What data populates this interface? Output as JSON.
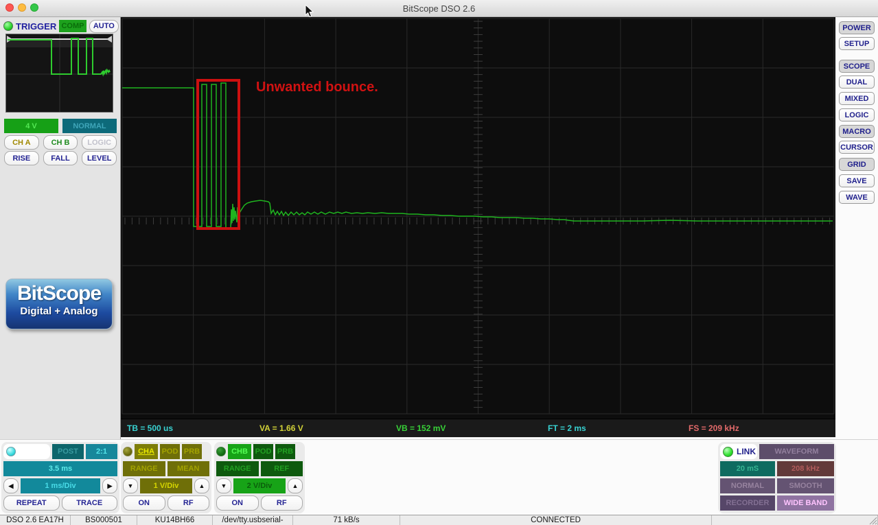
{
  "window": {
    "title": "BitScope DSO 2.6"
  },
  "trigger": {
    "label": "TRIGGER",
    "comp_label": "COMP",
    "auto_label": "AUTO",
    "level_value": "4 V",
    "mode_value": "NORMAL",
    "source_a": "CH A",
    "source_b": "CH B",
    "source_logic": "LOGIC",
    "edge_rise": "RISE",
    "edge_fall": "FALL",
    "edge_level": "LEVEL"
  },
  "logo": {
    "title": "BitScope",
    "subtitle": "Digital + Analog"
  },
  "scope": {
    "annotation": "Unwanted bounce.",
    "annotation_color": "#d11212",
    "trace_color": "#1fb51f",
    "measurements": {
      "tb": {
        "label": "TB = 500 us",
        "color": "#38d2d2"
      },
      "va": {
        "label": "VA = 1.66 V",
        "color": "#d2d238"
      },
      "vb": {
        "label": "VB = 152 mV",
        "color": "#38d238"
      },
      "ft": {
        "label": "FT = 2 ms",
        "color": "#38d2d2"
      },
      "fs": {
        "label": "FS = 209 kHz",
        "color": "#e26a6a"
      }
    }
  },
  "right_panel": {
    "buttons": [
      {
        "label": "POWER",
        "active": true
      },
      {
        "label": "SETUP",
        "active": false
      },
      {
        "label": "SCOPE",
        "active": true
      },
      {
        "label": "DUAL",
        "active": false
      },
      {
        "label": "MIXED",
        "active": false
      },
      {
        "label": "LOGIC",
        "active": false
      },
      {
        "label": "MACRO",
        "active": true
      },
      {
        "label": "CURSOR",
        "active": false
      },
      {
        "label": "GRID",
        "active": true
      },
      {
        "label": "SAVE",
        "active": false
      },
      {
        "label": "WAVE",
        "active": false
      }
    ]
  },
  "timebase": {
    "post_label": "POST",
    "ratio": "2:1",
    "span": "3.5 ms",
    "per_div": "1 ms/Div",
    "repeat_label": "REPEAT",
    "trace_label": "TRACE"
  },
  "channel_a": {
    "name": "CHA",
    "pod": "POD",
    "prb": "PRB",
    "range": "RANGE",
    "mean": "MEAN",
    "per_div": "1 V/Div",
    "on": "ON",
    "rf": "RF"
  },
  "channel_b": {
    "name": "CHB",
    "pod": "POD",
    "prb": "PRB",
    "range": "RANGE",
    "ref": "REF",
    "per_div": "2 V/Div",
    "on": "ON",
    "rf": "RF"
  },
  "link": {
    "label": "LINK",
    "waveform": "WAVEFORM",
    "time": "20 mS",
    "rate": "208 kHz",
    "normal": "NORMAL",
    "smooth": "SMOOTH",
    "recorder": "RECORDER",
    "wideband": "WIDE BAND"
  },
  "status_bar": {
    "items": [
      "DSO 2.6 EA17H",
      "BS000501",
      "KU14BH66",
      "/dev/tty.usbserial-",
      "71 kB/s",
      "CONNECTED"
    ]
  }
}
